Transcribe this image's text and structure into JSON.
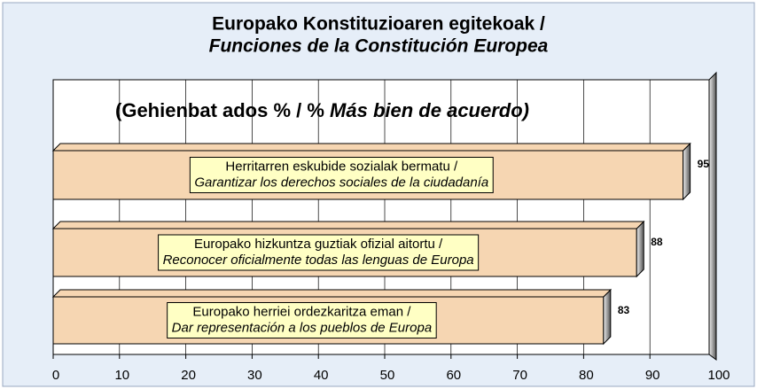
{
  "chart_data": {
    "type": "bar",
    "orientation": "horizontal",
    "title": [
      "Europako Konstituzioaren egitekoak /",
      "Funciones de la Constitución Europea"
    ],
    "annotation": [
      "(Gehienbat ados % / % ",
      "Más bien de acuerdo)"
    ],
    "categories": [
      [
        "Herritarren eskubide sozialak bermatu /",
        "Garantizar los derechos sociales de la ciudadanía"
      ],
      [
        "Europako hizkuntza guztiak ofizial aitortu /",
        "Reconocer oficialmente todas las lenguas de Europa"
      ],
      [
        "Europako herriei ordezkaritza eman /",
        "Dar representación a los pueblos de Europa"
      ]
    ],
    "values": [
      95,
      88,
      83
    ],
    "color": "#f6d6b2",
    "label_color": "#ffffc4",
    "xlim": [
      0,
      100
    ],
    "xticks": [
      0,
      10,
      20,
      30,
      40,
      50,
      60,
      70,
      80,
      90,
      100
    ],
    "grid": true
  }
}
